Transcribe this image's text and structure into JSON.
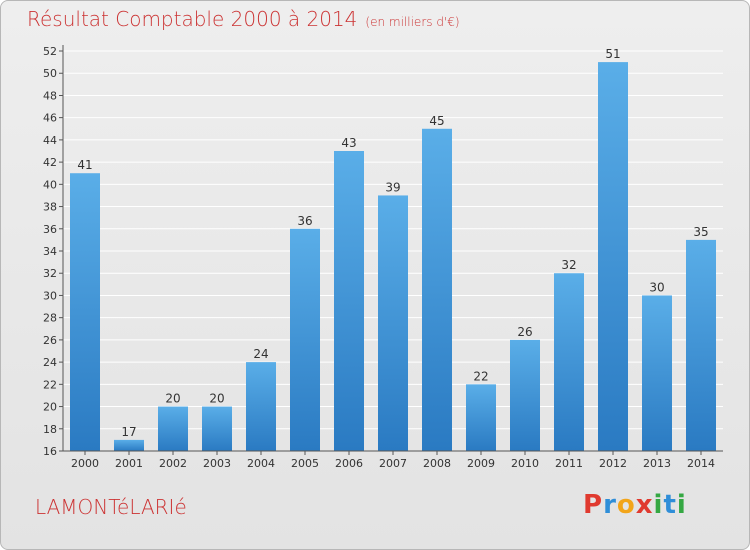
{
  "header": {
    "title": "Résultat Comptable 2000 à 2014",
    "unit": "(en milliers d'€)"
  },
  "footer": {
    "town": "LAMONTéLARIé",
    "brand_letters": [
      "P",
      "r",
      "o",
      "x",
      "i",
      "t",
      "i"
    ]
  },
  "colors": {
    "title": "#cc3333",
    "bar_light": "#5aaee8",
    "bar_dark": "#2a7ac2",
    "brand": [
      "#e03a2f",
      "#2f8ed8",
      "#f2a51a",
      "#e03a2f",
      "#35a843",
      "#2f8ed8",
      "#35a843"
    ]
  },
  "chart_data": {
    "type": "bar",
    "title": "Résultat Comptable 2000 à 2014",
    "subtitle": "(en milliers d'€)",
    "categories": [
      "2000",
      "2001",
      "2002",
      "2003",
      "2004",
      "2005",
      "2006",
      "2007",
      "2008",
      "2009",
      "2010",
      "2011",
      "2012",
      "2013",
      "2014"
    ],
    "values": [
      41,
      17,
      20,
      20,
      24,
      36,
      43,
      39,
      45,
      22,
      26,
      32,
      51,
      30,
      35
    ],
    "ylim": [
      16,
      52
    ],
    "yticks": [
      16,
      18,
      20,
      22,
      24,
      26,
      28,
      30,
      32,
      34,
      36,
      38,
      40,
      42,
      44,
      46,
      48,
      50,
      52
    ],
    "xlabel": "",
    "ylabel": ""
  }
}
